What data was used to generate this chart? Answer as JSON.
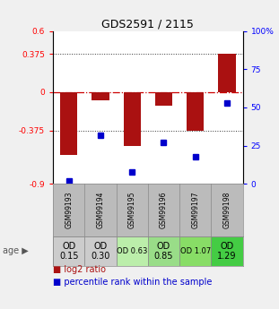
{
  "title": "GDS2591 / 2115",
  "samples": [
    "GSM99193",
    "GSM99194",
    "GSM99195",
    "GSM99196",
    "GSM99197",
    "GSM99198"
  ],
  "log2_ratios": [
    -0.62,
    -0.08,
    -0.53,
    -0.13,
    -0.38,
    0.38
  ],
  "percentile_ranks": [
    2,
    32,
    8,
    27,
    18,
    53
  ],
  "bar_color": "#aa1111",
  "dot_color": "#0000cc",
  "ylim_left": [
    -0.9,
    0.6
  ],
  "ylim_right": [
    0,
    100
  ],
  "yticks_left": [
    -0.9,
    -0.375,
    0,
    0.375,
    0.6
  ],
  "ytick_labels_left": [
    "-0.9",
    "-0.375",
    "0",
    "0.375",
    "0.6"
  ],
  "yticks_right": [
    0,
    25,
    50,
    75,
    100
  ],
  "ytick_labels_right": [
    "0",
    "25",
    "50",
    "75",
    "100%"
  ],
  "hlines": [
    -0.375,
    0.375
  ],
  "zero_line_color": "#cc0000",
  "hline_color": "#333333",
  "age_labels": [
    "OD\n0.15",
    "OD\n0.30",
    "OD 0.63",
    "OD\n0.85",
    "OD 1.07",
    "OD\n1.29"
  ],
  "age_bg_colors": [
    "#cccccc",
    "#cccccc",
    "#bbeeaa",
    "#99dd88",
    "#88dd66",
    "#44cc44"
  ],
  "age_font_sizes": [
    7,
    7,
    6,
    7,
    6,
    7
  ],
  "sample_bg_color": "#bbbbbb",
  "fig_bg_color": "#f0f0f0",
  "grid_bg_color": "#ffffff"
}
